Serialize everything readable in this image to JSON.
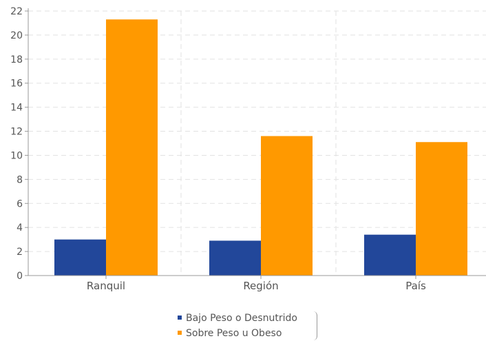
{
  "chart_data": {
    "type": "bar",
    "categories": [
      "Ranquil",
      "Región",
      "País"
    ],
    "series": [
      {
        "name": "Bajo Peso o Desnutrido",
        "color": "#22479a",
        "values": [
          3.0,
          2.9,
          3.4
        ]
      },
      {
        "name": "Sobre Peso u Obeso",
        "color": "#ff9900",
        "values": [
          21.3,
          11.6,
          11.1
        ]
      }
    ],
    "ylim": [
      0,
      22
    ],
    "yticks": [
      0,
      2,
      4,
      6,
      8,
      10,
      12,
      14,
      16,
      18,
      20,
      22
    ],
    "grid": true,
    "legend_position": "bottom"
  }
}
